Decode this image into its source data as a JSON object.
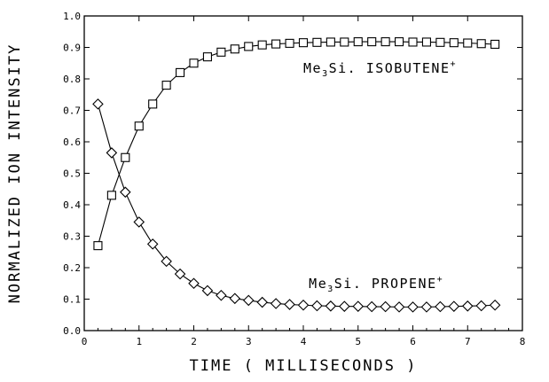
{
  "chart_data": {
    "type": "scatter",
    "xlabel": "TIME ( MILLISECONDS )",
    "ylabel": "NORMALIZED ION INTENSITY",
    "xlim": [
      0,
      8
    ],
    "ylim": [
      0,
      1.0
    ],
    "xticks": [
      "0",
      "1",
      "2",
      "3",
      "4",
      "5",
      "6",
      "7",
      "8"
    ],
    "yticks": [
      "0.0",
      "0.1",
      "0.2",
      "0.3",
      "0.4",
      "0.5",
      "0.6",
      "0.7",
      "0.8",
      "0.9",
      "1.0"
    ],
    "grid": false,
    "x": [
      0.25,
      0.5,
      0.75,
      1.0,
      1.25,
      1.5,
      1.75,
      2.0,
      2.25,
      2.5,
      2.75,
      3.0,
      3.25,
      3.5,
      3.75,
      4.0,
      4.25,
      4.5,
      4.75,
      5.0,
      5.25,
      5.5,
      5.75,
      6.0,
      6.25,
      6.5,
      6.75,
      7.0,
      7.25,
      7.5
    ],
    "series": [
      {
        "marker": "square",
        "label_parts": [
          "Me",
          "3",
          "Si. ISOBUTENE",
          "+"
        ],
        "values": [
          0.27,
          0.43,
          0.55,
          0.65,
          0.72,
          0.78,
          0.82,
          0.85,
          0.87,
          0.885,
          0.895,
          0.903,
          0.908,
          0.911,
          0.913,
          0.915,
          0.916,
          0.917,
          0.917,
          0.918,
          0.918,
          0.918,
          0.918,
          0.917,
          0.917,
          0.916,
          0.915,
          0.914,
          0.912,
          0.91
        ]
      },
      {
        "marker": "diamond",
        "label_parts": [
          "Me",
          "3",
          "Si. PROPENE",
          "+"
        ],
        "values": [
          0.72,
          0.565,
          0.44,
          0.345,
          0.275,
          0.22,
          0.18,
          0.15,
          0.127,
          0.112,
          0.102,
          0.096,
          0.09,
          0.086,
          0.083,
          0.081,
          0.079,
          0.078,
          0.077,
          0.077,
          0.076,
          0.076,
          0.075,
          0.075,
          0.075,
          0.076,
          0.077,
          0.078,
          0.079,
          0.081
        ]
      }
    ]
  }
}
